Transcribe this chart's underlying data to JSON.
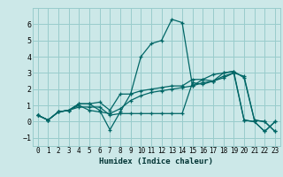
{
  "title": "",
  "xlabel": "Humidex (Indice chaleur)",
  "ylabel": "",
  "background_color": "#cce8e8",
  "grid_color": "#99cccc",
  "line_color": "#006666",
  "xlim": [
    -0.5,
    23.5
  ],
  "ylim": [
    -1.5,
    7.0
  ],
  "yticks": [
    -1,
    0,
    1,
    2,
    3,
    4,
    5,
    6
  ],
  "xticks": [
    0,
    1,
    2,
    3,
    4,
    5,
    6,
    7,
    8,
    9,
    10,
    11,
    12,
    13,
    14,
    15,
    16,
    17,
    18,
    19,
    20,
    21,
    22,
    23
  ],
  "series": [
    [
      0.4,
      0.1,
      0.6,
      0.7,
      1.1,
      1.1,
      0.7,
      -0.5,
      0.6,
      1.7,
      4.0,
      4.8,
      5.0,
      6.3,
      6.1,
      2.2,
      2.6,
      2.5,
      2.8,
      3.0,
      0.1,
      0.0,
      -0.6,
      0.0
    ],
    [
      0.4,
      0.1,
      0.6,
      0.7,
      1.0,
      0.7,
      0.6,
      0.5,
      0.8,
      1.3,
      1.6,
      1.8,
      1.9,
      2.0,
      2.1,
      2.2,
      2.4,
      2.5,
      2.7,
      3.0,
      2.8,
      0.1,
      0.0,
      -0.6
    ],
    [
      0.4,
      0.1,
      0.6,
      0.7,
      0.9,
      0.9,
      0.9,
      0.4,
      0.5,
      0.5,
      0.5,
      0.5,
      0.5,
      0.5,
      0.5,
      2.4,
      2.3,
      2.5,
      3.0,
      3.1,
      0.1,
      0.0,
      -0.6,
      0.0
    ],
    [
      0.4,
      0.1,
      0.6,
      0.7,
      1.1,
      1.1,
      1.2,
      0.7,
      1.7,
      1.7,
      1.9,
      2.0,
      2.1,
      2.2,
      2.2,
      2.6,
      2.6,
      2.9,
      3.0,
      3.1,
      2.7,
      0.1,
      0.0,
      -0.6
    ]
  ]
}
